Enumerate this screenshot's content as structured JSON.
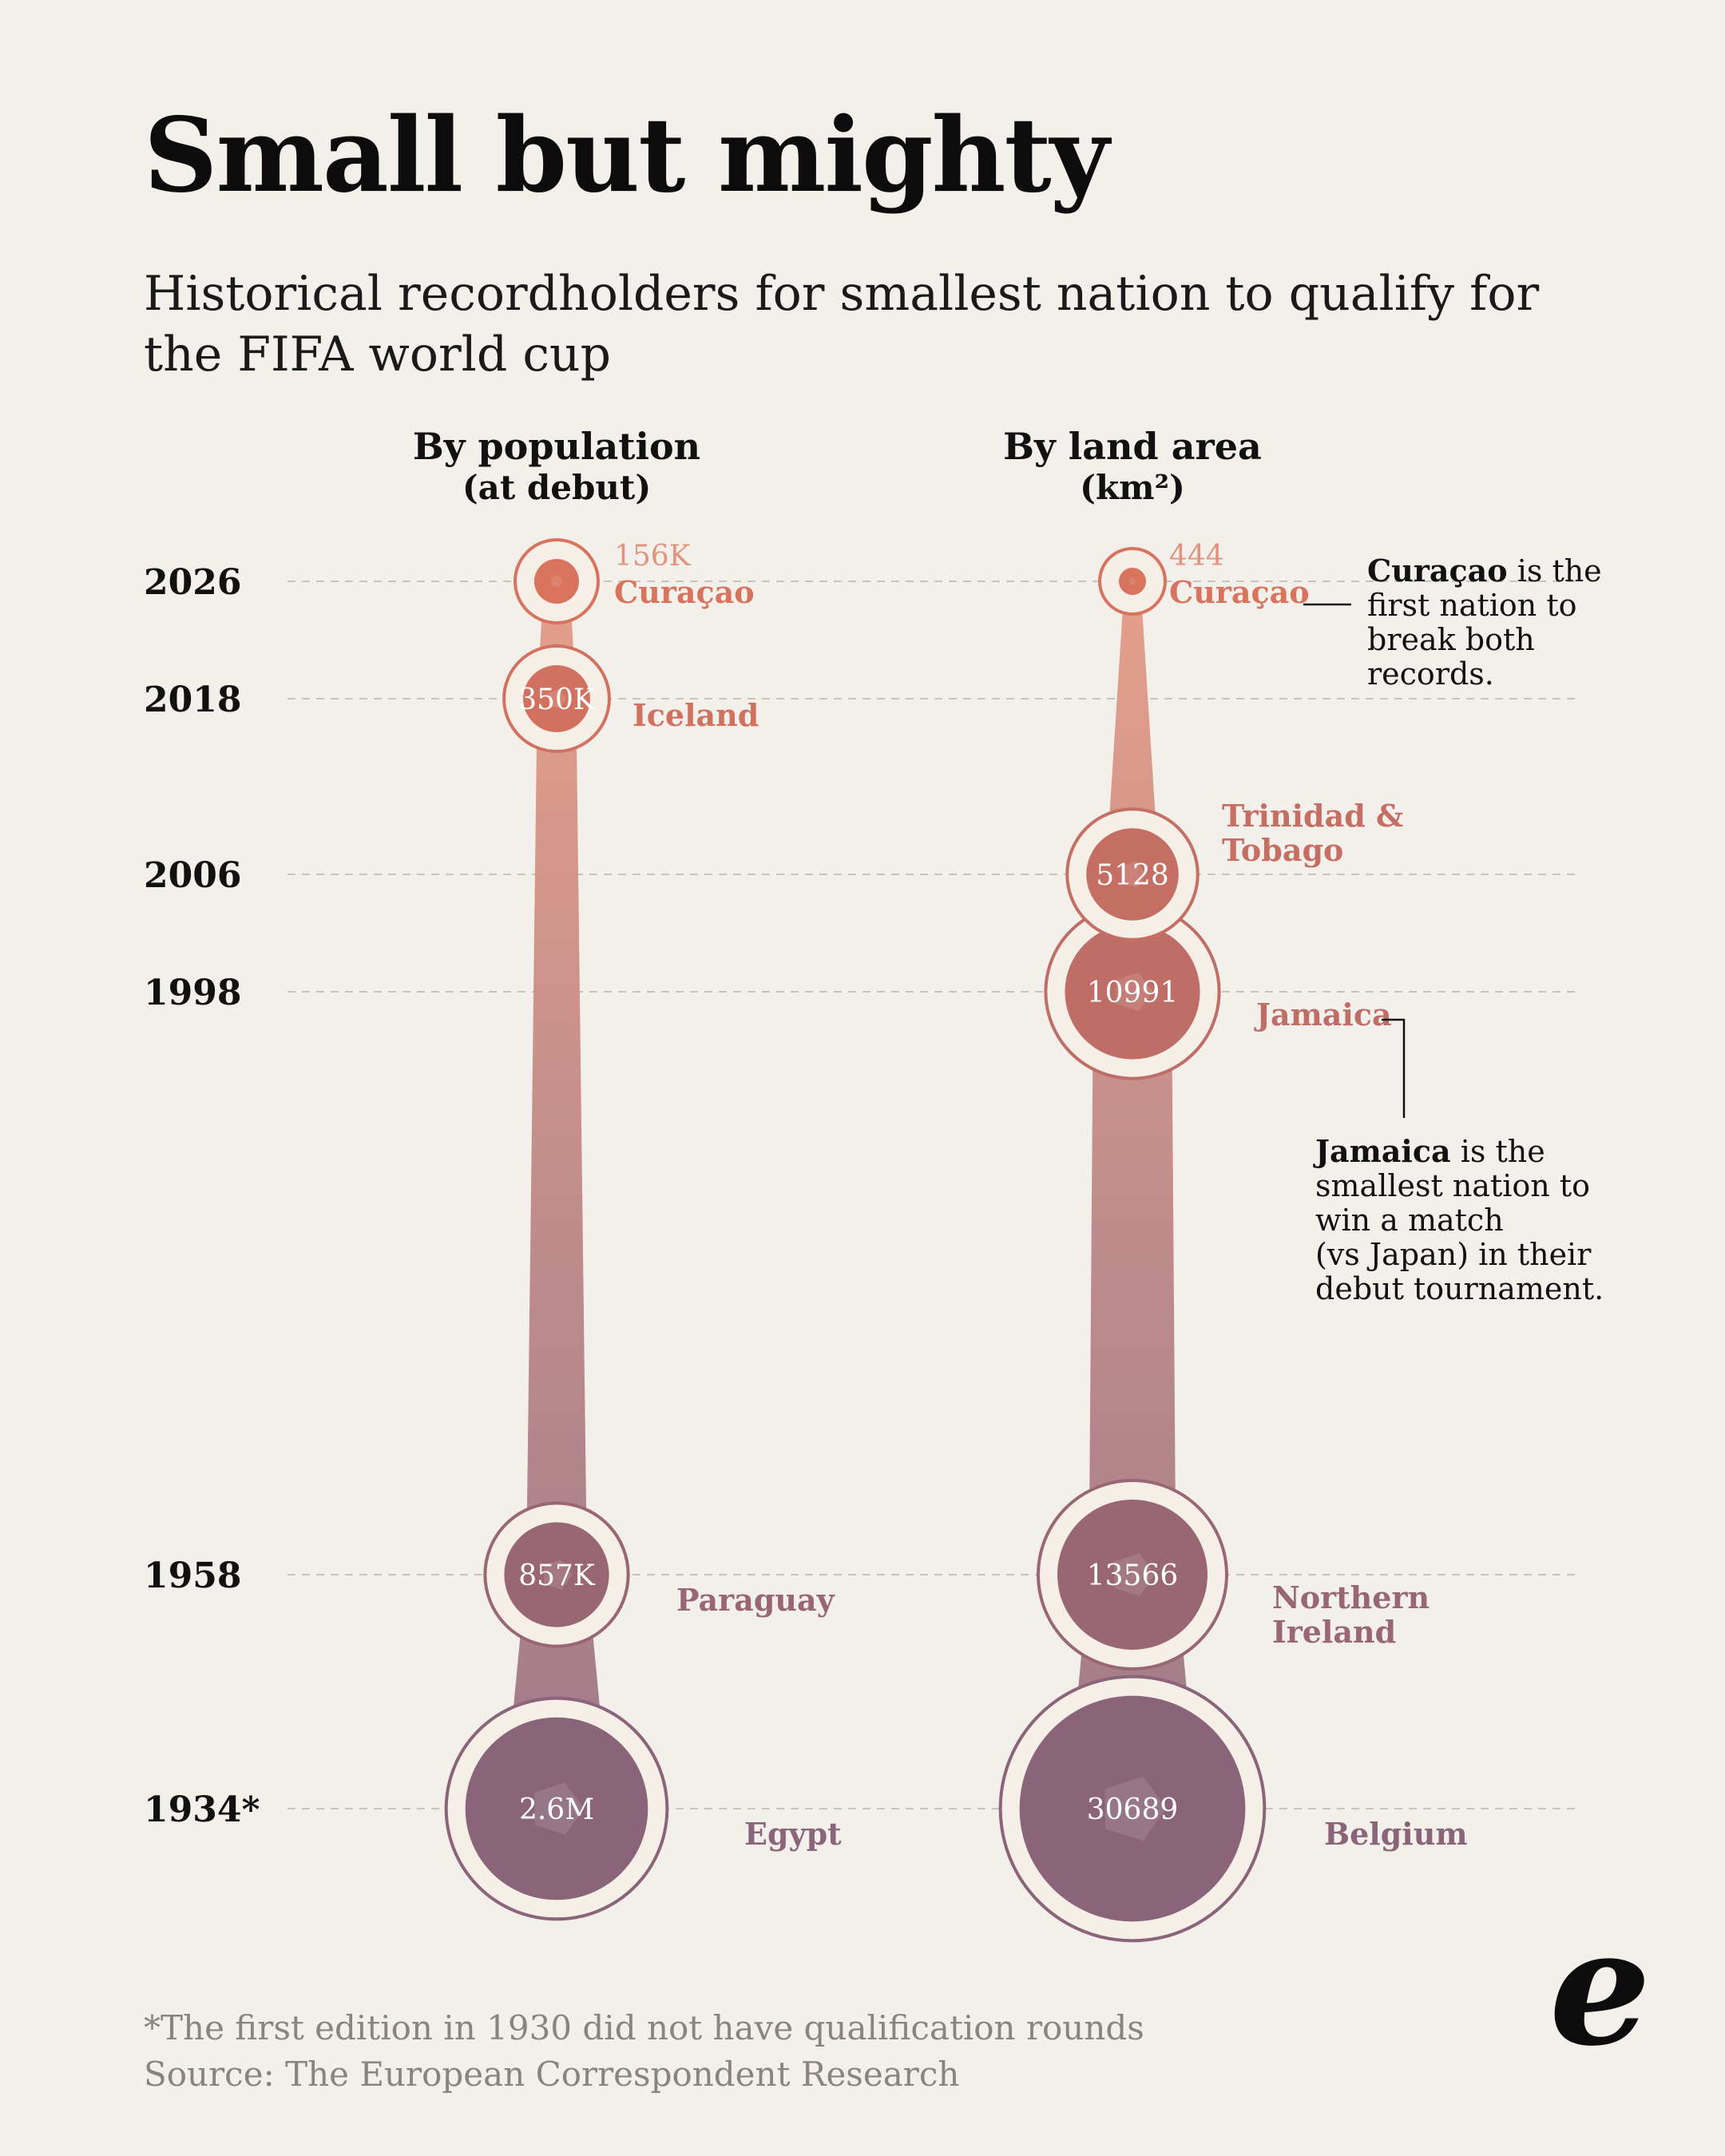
{
  "title": "Small but mighty",
  "subtitle": "Historical recordholders for smallest nation to qualify for the FIFA world cup",
  "chart_data": {
    "type": "bubble-timeline",
    "years": [
      "2026",
      "2018",
      "2006",
      "1998",
      "1958",
      "1934*"
    ],
    "panels": [
      {
        "id": "population",
        "title": "By population",
        "subtitle": "(at debut)",
        "points": [
          {
            "year": "2026",
            "country": "Curaçao",
            "value": 156000,
            "label": "156K"
          },
          {
            "year": "2018",
            "country": "Iceland",
            "value": 350000,
            "label": "350K"
          },
          {
            "year": "1958",
            "country": "Paraguay",
            "value": 857000,
            "label": "857K"
          },
          {
            "year": "1934*",
            "country": "Egypt",
            "value": 2600000,
            "label": "2.6M"
          }
        ]
      },
      {
        "id": "area",
        "title": "By land area",
        "subtitle": "(km²)",
        "points": [
          {
            "year": "2026",
            "country": "Curaçao",
            "value": 444,
            "label": "444"
          },
          {
            "year": "2006",
            "country": "Trinidad & Tobago",
            "value": 5128,
            "label": "5128"
          },
          {
            "year": "1998",
            "country": "Jamaica",
            "value": 10991,
            "label": "10991"
          },
          {
            "year": "1958",
            "country": "Northern Ireland",
            "value": 13566,
            "label": "13566"
          },
          {
            "year": "1934*",
            "country": "Belgium",
            "value": 30689,
            "label": "30689"
          }
        ]
      }
    ],
    "annotations": [
      {
        "bold": "Curaçao",
        "lines": [
          " is the",
          "first nation to",
          "break both",
          "records."
        ]
      },
      {
        "bold": "Jamaica",
        "lines": [
          " is the",
          "smallest nation to",
          "win a match",
          "(vs Japan) in their",
          "debut tournament."
        ]
      }
    ]
  },
  "footnote": "*The first edition in 1930 did not have qualification rounds",
  "source": "Source: The European Correspondent Research",
  "logo": "e",
  "colors": {
    "background": "#f3f0eb",
    "recent": "#d8735e",
    "old": "#8a6479",
    "ring": "#f6efe8"
  }
}
